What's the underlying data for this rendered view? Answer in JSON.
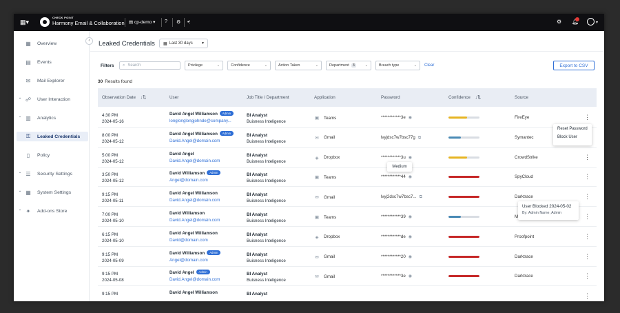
{
  "topbar": {
    "brand_small": "CHECK POINT",
    "brand_name": "Harmony Email & Collaboration",
    "tenant": "cp-demo"
  },
  "sidebar": {
    "items": [
      {
        "label": "Overview",
        "icon": "dashboard-icon",
        "chevron": false
      },
      {
        "label": "Events",
        "icon": "calendar-icon",
        "chevron": false
      },
      {
        "label": "Mail Explorer",
        "icon": "mail-search-icon",
        "chevron": false
      },
      {
        "label": "User Interaction",
        "icon": "user-interaction-icon",
        "chevron": true
      },
      {
        "label": "Analytics",
        "icon": "analytics-icon",
        "chevron": true
      },
      {
        "label": "Leaked Credentials",
        "icon": "leaked-credentials-icon",
        "chevron": false,
        "active": true
      },
      {
        "label": "Policy",
        "icon": "book-icon",
        "chevron": false
      },
      {
        "label": "Security Settings",
        "icon": "sliders-icon",
        "chevron": true
      },
      {
        "label": "System Settings",
        "icon": "grid-icon",
        "chevron": true
      },
      {
        "label": "Add-ons Store",
        "icon": "plugin-icon",
        "chevron": true
      }
    ]
  },
  "header": {
    "title": "Leaked Credentials",
    "date_range": "Last 30 days"
  },
  "filters": {
    "label": "Filters",
    "search_placeholder": "Search",
    "privilege": "Privilege",
    "confidence": "Confidence",
    "action_taken": "Action Taken",
    "department": "Department",
    "department_count": "3",
    "breach_type": "Breach type",
    "clear": "Clear",
    "export": "Export to CSV"
  },
  "results": {
    "count": "30",
    "label": "Results found"
  },
  "table": {
    "columns": [
      "Observation Date",
      "User",
      "Job Title / Department",
      "Application",
      "Password",
      "Confidence",
      "Source"
    ],
    "rows": [
      {
        "time": "4:30 PM",
        "date": "2024-05-16",
        "name": "David Angel Williamson",
        "admin": true,
        "email": "longlonglongjohnde@company...",
        "job": "BI Analyst",
        "dept": "Buisness Inteligence",
        "app": "Teams",
        "app_icon": "teams-icon",
        "password": "************3e",
        "pw_icon": "eye-icon",
        "confidence": 0.6,
        "conf_color": "#e6b422",
        "source": "FireEye"
      },
      {
        "time": "8:00 PM",
        "date": "2024-05-12",
        "name": "David Angel Williamson",
        "admin": true,
        "email": "David.Angel@domain.com",
        "job": "BI Analyst",
        "dept": "Buisness Inteligence",
        "app": "Gmail",
        "app_icon": "mail-icon",
        "password": "lvyjdsc7w7bsc77g",
        "pw_icon": "copy-icon",
        "confidence": 0.4,
        "conf_color": "#4a8ab5",
        "source": "Symantec"
      },
      {
        "time": "5:00 PM",
        "date": "2024-05-12",
        "name": "David Angel",
        "admin": false,
        "email": "David.Angel@domain.com",
        "job": "BI Analyst",
        "dept": "Buisness Inteligence",
        "app": "Dropbox",
        "app_icon": "dropbox-icon",
        "password": "************3u",
        "pw_icon": "eye-icon",
        "confidence": 0.6,
        "conf_color": "#e6b422",
        "source": "CrowdStrike"
      },
      {
        "time": "3:50 PM",
        "date": "2024-05-12",
        "name": "David Williamson",
        "admin": true,
        "email": "Angel@domain.com",
        "job": "BI Analyst",
        "dept": "Buisness Inteligence",
        "app": "Teams",
        "app_icon": "teams-icon",
        "password": "************44",
        "pw_icon": "eye-icon",
        "confidence": 1.0,
        "conf_color": "#c62828",
        "source": "SpyCloud"
      },
      {
        "time": "9:15 PM",
        "date": "2024-05-11",
        "name": "David Angel Williamson",
        "admin": false,
        "email": "David.Angel@domain.com",
        "job": "BI Analyst",
        "dept": "Buisness Inteligence",
        "app": "Gmail",
        "app_icon": "mail-icon",
        "password": "lvyj2dsc7w7bsc7...",
        "pw_icon": "copy-icon",
        "confidence": 1.0,
        "conf_color": "#c62828",
        "source": "Darktrace"
      },
      {
        "time": "7:00 PM",
        "date": "2024-05-10",
        "name": "David Williamson",
        "admin": false,
        "email": "David.Angel@domain.com",
        "job": "BI Analyst",
        "dept": "Buisness Inteligence",
        "app": "Teams",
        "app_icon": "teams-icon",
        "password": "************39",
        "pw_icon": "eye-icon",
        "confidence": 0.4,
        "conf_color": "#4a8ab5",
        "source": "M"
      },
      {
        "time": "6:15 PM",
        "date": "2024-05-10",
        "name": "David Angel Williamson",
        "admin": false,
        "email": "David@domain.com",
        "job": "BI Analyst",
        "dept": "Buisness Inteligence",
        "app": "Dropbox",
        "app_icon": "dropbox-icon",
        "password": "************de",
        "pw_icon": "eye-icon",
        "confidence": 1.0,
        "conf_color": "#c62828",
        "source": "Proofpoint"
      },
      {
        "time": "9:15 PM",
        "date": "2024-05-09",
        "name": "David  Williamson",
        "admin": true,
        "email": "Angel@domain.com",
        "job": "BI Analyst",
        "dept": "Buisness Inteligence",
        "app": "Gmail",
        "app_icon": "mail-icon",
        "password": "************20",
        "pw_icon": "eye-icon",
        "confidence": 1.0,
        "conf_color": "#c62828",
        "source": "Darktrace"
      },
      {
        "time": "9:15 PM",
        "date": "2024-05-08",
        "name": "David Angel",
        "admin": true,
        "email": "David.Angel@domain.com",
        "job": "BI Analyst",
        "dept": "Buisness Inteligence",
        "app": "Gmail",
        "app_icon": "mail-icon",
        "password": "************3e",
        "pw_icon": "eye-icon",
        "confidence": 1.0,
        "conf_color": "#c62828",
        "source": "Darktrace"
      },
      {
        "time": "9:15 PM",
        "date": "",
        "name": "David Angel Williamson",
        "admin": false,
        "email": "",
        "job": "BI Analyst",
        "dept": "",
        "app": "",
        "app_icon": "",
        "password": "",
        "pw_icon": "",
        "confidence": null,
        "conf_color": "",
        "source": ""
      }
    ],
    "admin_label": "Admin"
  },
  "row_menu": {
    "items": [
      "Reset Password",
      "Block User"
    ]
  },
  "tooltip_confidence": "Medium",
  "tooltip_blocked": {
    "title": "User Blocked 2024-05-02",
    "by": "By: Admin Name, Admin"
  },
  "colors": {
    "accent": "#2f6fd6",
    "high": "#c62828",
    "medium": "#e6b422",
    "low": "#4a8ab5"
  }
}
